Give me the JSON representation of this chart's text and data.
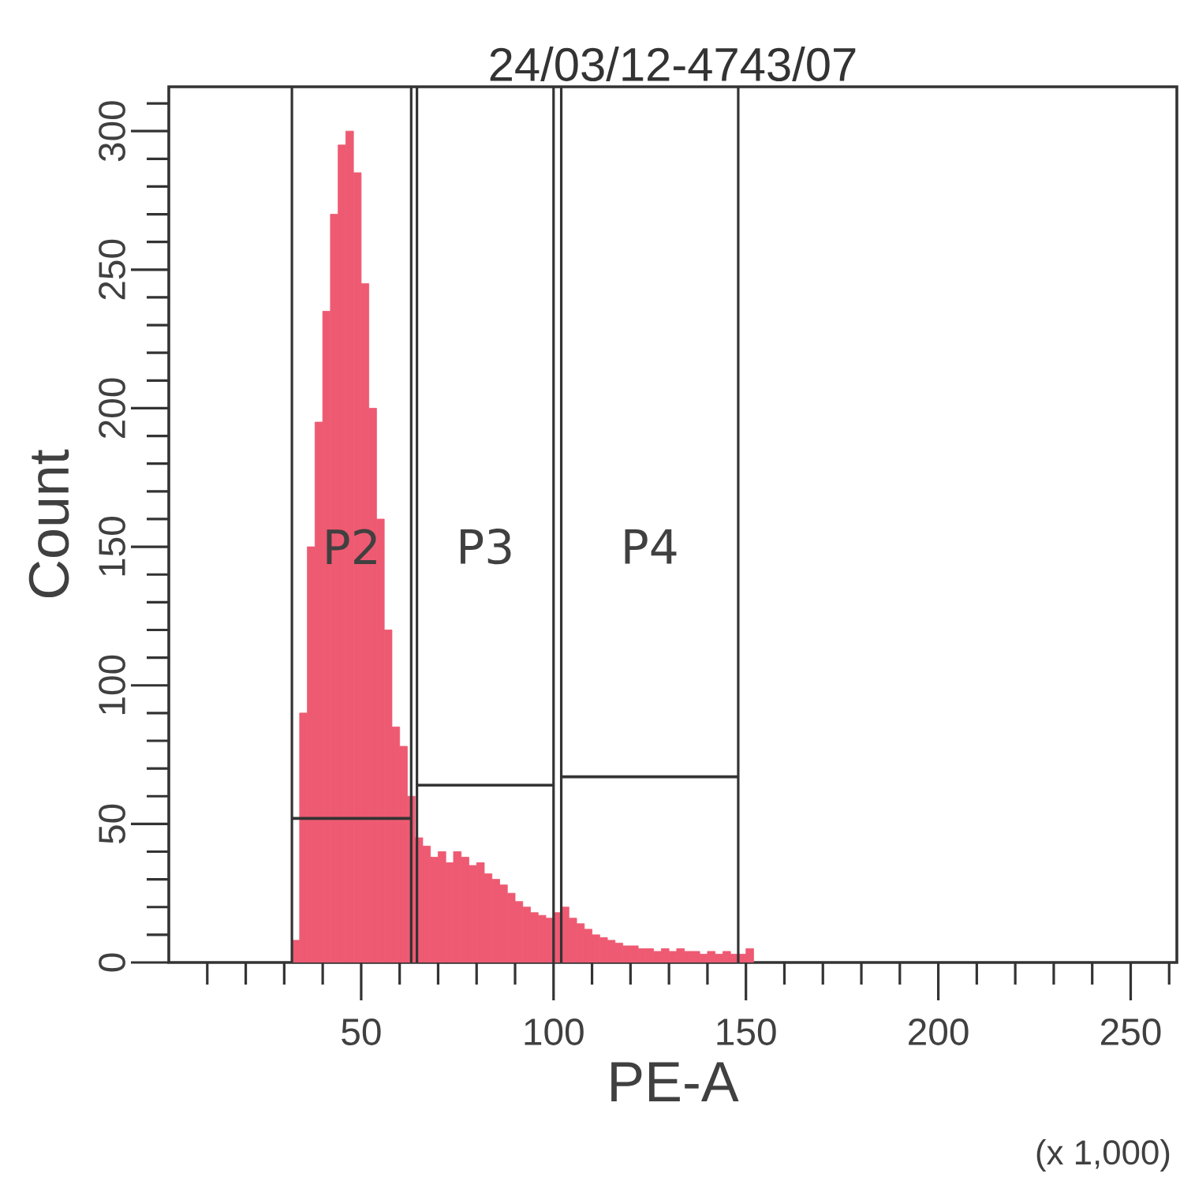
{
  "chart_data": {
    "type": "histogram",
    "title": "24/03/12-4743/07",
    "xlabel": "PE-A",
    "ylabel": "Count",
    "bins": [
      32,
      34,
      36,
      38,
      40,
      42,
      44,
      46,
      48,
      50,
      52,
      54,
      56,
      58,
      60,
      62,
      64,
      66,
      68,
      70,
      72,
      74,
      76,
      78,
      80,
      82,
      84,
      86,
      88,
      90,
      92,
      94,
      96,
      98,
      100,
      102,
      104,
      106,
      108,
      110,
      112,
      114,
      116,
      118,
      120,
      122,
      124,
      126,
      128,
      130,
      132,
      134,
      136,
      138,
      140,
      142,
      144,
      146,
      148,
      150,
      152
    ],
    "values": [
      8,
      90,
      150,
      195,
      235,
      270,
      295,
      300,
      285,
      245,
      200,
      160,
      120,
      85,
      78,
      60,
      45,
      42,
      38,
      40,
      36,
      40,
      38,
      35,
      36,
      32,
      30,
      28,
      25,
      22,
      20,
      18,
      17,
      16,
      18,
      20,
      16,
      14,
      12,
      10,
      9,
      8,
      7,
      6,
      6,
      5,
      5,
      4,
      5,
      4,
      5,
      4,
      4,
      3,
      4,
      3,
      4,
      3,
      3,
      5
    ],
    "color": "#ee5a72",
    "series": [
      {
        "type": "line",
        "x": [
          32,
          63
        ],
        "values": [
          52,
          52
        ],
        "color": "#333333"
      },
      {
        "type": "line",
        "x": [
          64.5,
          100
        ],
        "values": [
          64,
          64
        ],
        "color": "#333333"
      },
      {
        "type": "line",
        "x": [
          102,
          148
        ],
        "values": [
          67,
          67
        ],
        "color": "#333333"
      }
    ],
    "ref_lines": [
      {
        "axis": "x",
        "value": 32,
        "color": "#333333"
      },
      {
        "axis": "x",
        "value": 63,
        "color": "#333333"
      },
      {
        "axis": "x",
        "value": 64.5,
        "color": "#333333"
      },
      {
        "axis": "x",
        "value": 100,
        "color": "#333333"
      },
      {
        "axis": "x",
        "value": 102,
        "color": "#333333"
      },
      {
        "axis": "x",
        "value": 148,
        "color": "#333333"
      }
    ],
    "annotations": [
      "P2",
      "P3",
      "P4",
      "(x 1,000)"
    ],
    "xlim": [
      0,
      262
    ],
    "ylim": [
      0,
      316
    ],
    "xticks": [
      {
        "value": 10,
        "label": null
      },
      {
        "value": 20,
        "label": null
      },
      {
        "value": 30,
        "label": null
      },
      {
        "value": 40,
        "label": null
      },
      50,
      {
        "value": 60,
        "label": null
      },
      {
        "value": 70,
        "label": null
      },
      {
        "value": 80,
        "label": null
      },
      {
        "value": 90,
        "label": null
      },
      100,
      {
        "value": 110,
        "label": null
      },
      {
        "value": 120,
        "label": null
      },
      {
        "value": 130,
        "label": null
      },
      {
        "value": 140,
        "label": null
      },
      150,
      {
        "value": 160,
        "label": null
      },
      {
        "value": 170,
        "label": null
      },
      {
        "value": 180,
        "label": null
      },
      {
        "value": 190,
        "label": null
      },
      200,
      {
        "value": 210,
        "label": null
      },
      {
        "value": 220,
        "label": null
      },
      {
        "value": 230,
        "label": null
      },
      {
        "value": 240,
        "label": null
      },
      250,
      {
        "value": 260,
        "label": null
      }
    ],
    "yticks": [
      0,
      {
        "value": 10,
        "label": null
      },
      {
        "value": 20,
        "label": null
      },
      {
        "value": 30,
        "label": null
      },
      {
        "value": 40,
        "label": null
      },
      50,
      {
        "value": 60,
        "label": null
      },
      {
        "value": 70,
        "label": null
      },
      {
        "value": 80,
        "label": null
      },
      {
        "value": 90,
        "label": null
      },
      100,
      {
        "value": 110,
        "label": null
      },
      {
        "value": 120,
        "label": null
      },
      {
        "value": 130,
        "label": null
      },
      {
        "value": 140,
        "label": null
      },
      150,
      {
        "value": 160,
        "label": null
      },
      {
        "value": 170,
        "label": null
      },
      {
        "value": 180,
        "label": null
      },
      {
        "value": 190,
        "label": null
      },
      200,
      {
        "value": 210,
        "label": null
      },
      {
        "value": 220,
        "label": null
      },
      {
        "value": 230,
        "label": null
      },
      {
        "value": 240,
        "label": null
      },
      250,
      {
        "value": 260,
        "label": null
      },
      {
        "value": 270,
        "label": null
      },
      {
        "value": 280,
        "label": null
      },
      {
        "value": 290,
        "label": null
      },
      300,
      {
        "value": 310,
        "label": null
      }
    ]
  }
}
